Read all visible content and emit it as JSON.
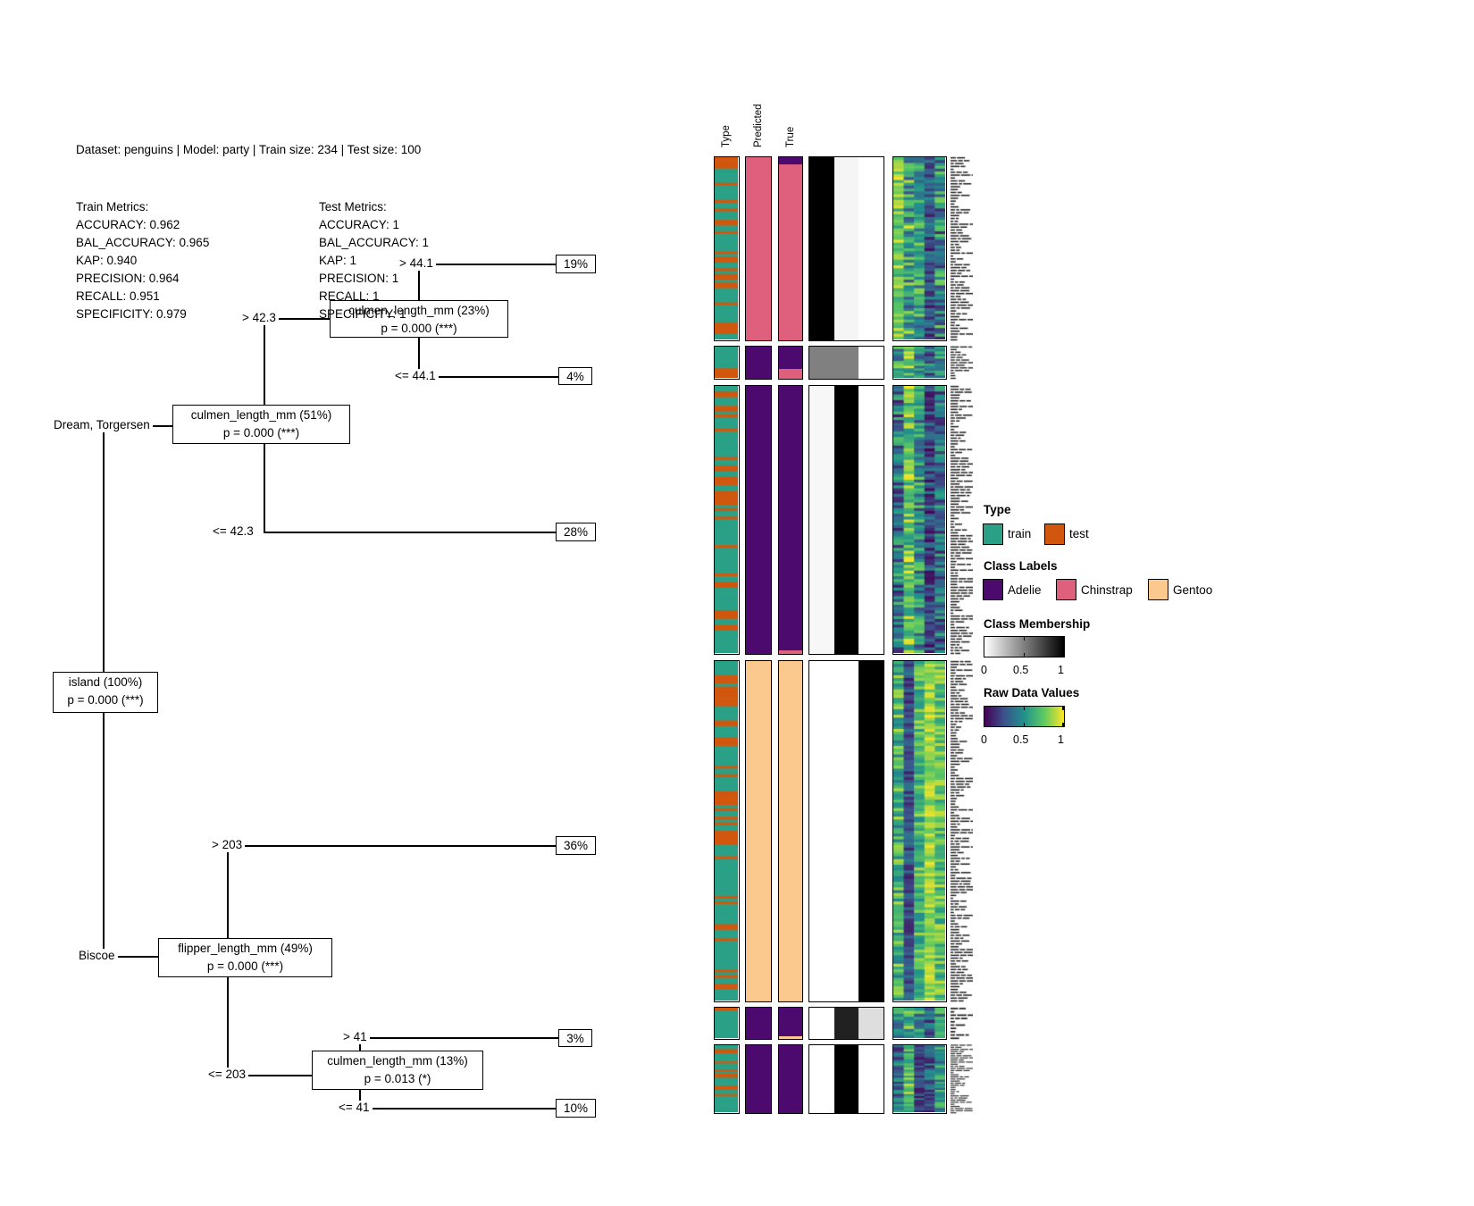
{
  "header": {
    "title": "Dataset: penguins | Model: party | Train size: 234 | Test size: 100"
  },
  "metrics": {
    "train": {
      "title": "Train Metrics:",
      "lines": [
        "ACCURACY: 0.962",
        "BAL_ACCURACY: 0.965",
        "KAP: 0.940",
        "PRECISION: 0.964",
        "RECALL: 0.951",
        "SPECIFICITY: 0.979"
      ]
    },
    "test": {
      "title": "Test Metrics:",
      "lines": [
        "ACCURACY: 1",
        "BAL_ACCURACY: 1",
        "KAP: 1",
        "PRECISION: 1",
        "RECALL: 1",
        "SPECIFICITY: 1"
      ]
    }
  },
  "tree": {
    "nodes": [
      {
        "id": "island",
        "line1": "island (100%)",
        "line2": "p = 0.000 (***)"
      },
      {
        "id": "culmen_length_51",
        "line1": "culmen_length_mm (51%)",
        "line2": "p = 0.000 (***)"
      },
      {
        "id": "culmen_length_23",
        "line1": "culmen_length_mm (23%)",
        "line2": "p = 0.000 (***)"
      },
      {
        "id": "flipper_length_49",
        "line1": "flipper_length_mm (49%)",
        "line2": "p = 0.000 (***)"
      },
      {
        "id": "culmen_length_13",
        "line1": "culmen_length_mm (13%)",
        "line2": "p = 0.013 (*)"
      }
    ],
    "edge_labels": [
      "Dream, Torgersen",
      "Biscoe",
      "> 42.3",
      "<= 42.3",
      "> 44.1",
      "<= 44.1",
      "> 203",
      "<= 203",
      "> 41",
      "<= 41"
    ],
    "leaves": [
      "19%",
      "4%",
      "28%",
      "36%",
      "3%",
      "10%"
    ]
  },
  "heatmap": {
    "column_headers": [
      "Type",
      "Predicted",
      "True"
    ],
    "blocks": [
      {
        "leaf": "19%",
        "rows": 64,
        "predicted": "chinstrap",
        "true_segments": [
          [
            "adelie",
            0.04
          ],
          [
            "chinstrap",
            0.96
          ]
        ],
        "membership": [
          1,
          0.04,
          0
        ],
        "raw_profile": [
          [
            0.78,
            0.15
          ],
          [
            0.6,
            0.28
          ],
          [
            0.55,
            0.2
          ],
          [
            0.28,
            0.16
          ],
          [
            0.45,
            0.25
          ]
        ],
        "seed": 101
      },
      {
        "leaf": "4%",
        "rows": 13,
        "predicted": "adelie",
        "true_segments": [
          [
            "adelie",
            0.69
          ],
          [
            "chinstrap",
            0.31
          ]
        ],
        "membership": [
          0.5,
          0.5,
          0
        ],
        "raw_profile": [
          [
            0.55,
            0.25
          ],
          [
            0.7,
            0.2
          ],
          [
            0.45,
            0.2
          ],
          [
            0.35,
            0.2
          ],
          [
            0.5,
            0.2
          ]
        ],
        "seed": 102
      },
      {
        "leaf": "28%",
        "rows": 94,
        "predicted": "adelie",
        "true_segments": [
          [
            "adelie",
            0.985
          ],
          [
            "chinstrap",
            0.015
          ]
        ],
        "membership": [
          0.03,
          1,
          0
        ],
        "raw_profile": [
          [
            0.4,
            0.22
          ],
          [
            0.75,
            0.18
          ],
          [
            0.5,
            0.22
          ],
          [
            0.22,
            0.15
          ],
          [
            0.35,
            0.2
          ]
        ],
        "seed": 103
      },
      {
        "leaf": "36%",
        "rows": 120,
        "predicted": "gentoo",
        "true_segments": [
          [
            "gentoo",
            1
          ]
        ],
        "membership": [
          0,
          0,
          1
        ],
        "raw_profile": [
          [
            0.65,
            0.18
          ],
          [
            0.25,
            0.12
          ],
          [
            0.68,
            0.15
          ],
          [
            0.85,
            0.1
          ],
          [
            0.72,
            0.15
          ]
        ],
        "seed": 104
      },
      {
        "leaf": "3%",
        "rows": 10,
        "predicted": "adelie",
        "true_segments": [
          [
            "adelie",
            0.92
          ],
          [
            "gentoo",
            0.08
          ]
        ],
        "membership": [
          0,
          0.87,
          0.13
        ],
        "raw_profile": [
          [
            0.45,
            0.2
          ],
          [
            0.6,
            0.2
          ],
          [
            0.5,
            0.2
          ],
          [
            0.3,
            0.15
          ],
          [
            0.5,
            0.2
          ]
        ],
        "seed": 105
      },
      {
        "leaf": "10%",
        "rows": 33,
        "predicted": "adelie",
        "true_segments": [
          [
            "adelie",
            1
          ]
        ],
        "membership": [
          0,
          1,
          0
        ],
        "raw_profile": [
          [
            0.35,
            0.18
          ],
          [
            0.68,
            0.2
          ],
          [
            0.22,
            0.12
          ],
          [
            0.32,
            0.18
          ],
          [
            0.5,
            0.18
          ]
        ],
        "seed": 106
      }
    ]
  },
  "legend": {
    "type": {
      "title": "Type",
      "items": [
        {
          "label": "train",
          "color_key": "train"
        },
        {
          "label": "test",
          "color_key": "test"
        }
      ]
    },
    "class_labels": {
      "title": "Class Labels",
      "items": [
        {
          "label": "Adelie",
          "color_key": "adelie"
        },
        {
          "label": "Chinstrap",
          "color_key": "chinstrap"
        },
        {
          "label": "Gentoo",
          "color_key": "gentoo"
        }
      ]
    },
    "class_membership": {
      "title": "Class Membership",
      "ticks": [
        "0",
        "0.5",
        "1"
      ]
    },
    "raw_data": {
      "title": "Raw Data Values",
      "ticks": [
        "0",
        "0.5",
        "1"
      ]
    }
  },
  "colors": {
    "train": "#2aa187",
    "test": "#d1570e",
    "adelie": "#4c0a6e",
    "chinstrap": "#df607c",
    "gentoo": "#fbc98e",
    "membership_low": "#ffffff",
    "membership_high": "#000000",
    "viridis": [
      "#440154",
      "#3b528b",
      "#21918c",
      "#5ec962",
      "#fde725"
    ]
  },
  "chart_data": {
    "type": "heatmap",
    "subtype": "decision-tree-with-aligned-heatmap (treeheatr style)",
    "title": "Dataset: penguins | Model: party | Train size: 234 | Test size: 100",
    "train_metrics": {
      "ACCURACY": 0.962,
      "BAL_ACCURACY": 0.965,
      "KAP": 0.94,
      "PRECISION": 0.964,
      "RECALL": 0.951,
      "SPECIFICITY": 0.979
    },
    "test_metrics": {
      "ACCURACY": 1,
      "BAL_ACCURACY": 1,
      "KAP": 1,
      "PRECISION": 1,
      "RECALL": 1,
      "SPECIFICITY": 1
    },
    "decision_tree": {
      "node": "island (100%)",
      "p": "p = 0.000 (***)",
      "children": [
        {
          "edge": "Dream, Torgersen",
          "node": "culmen_length_mm (51%)",
          "p": "p = 0.000 (***)",
          "children": [
            {
              "edge": "> 42.3",
              "node": "culmen_length_mm (23%)",
              "p": "p = 0.000 (***)",
              "children": [
                {
                  "edge": "> 44.1",
                  "leaf": "19%",
                  "predicted_class": "Chinstrap"
                },
                {
                  "edge": "<= 44.1",
                  "leaf": "4%",
                  "predicted_class": "Adelie"
                }
              ]
            },
            {
              "edge": "<= 42.3",
              "leaf": "28%",
              "predicted_class": "Adelie"
            }
          ]
        },
        {
          "edge": "Biscoe",
          "node": "flipper_length_mm (49%)",
          "p": "p = 0.000 (***)",
          "children": [
            {
              "edge": "> 203",
              "leaf": "36%",
              "predicted_class": "Gentoo"
            },
            {
              "edge": "<= 203",
              "node": "culmen_length_mm (13%)",
              "p": "p = 0.013 (*)",
              "children": [
                {
                  "edge": "> 41",
                  "leaf": "3%",
                  "predicted_class": "Adelie"
                },
                {
                  "edge": "<= 41",
                  "leaf": "10%",
                  "predicted_class": "Adelie"
                }
              ]
            }
          ]
        }
      ]
    },
    "heatmap_columns": [
      "Type",
      "Predicted",
      "True",
      "Class Membership (3 class probability columns)",
      "Raw Data Values (5 feature columns)"
    ],
    "legend_scales": {
      "class_membership_ticks": [
        0,
        0.5,
        1
      ],
      "raw_data_values_ticks": [
        0,
        0.5,
        1
      ]
    }
  }
}
